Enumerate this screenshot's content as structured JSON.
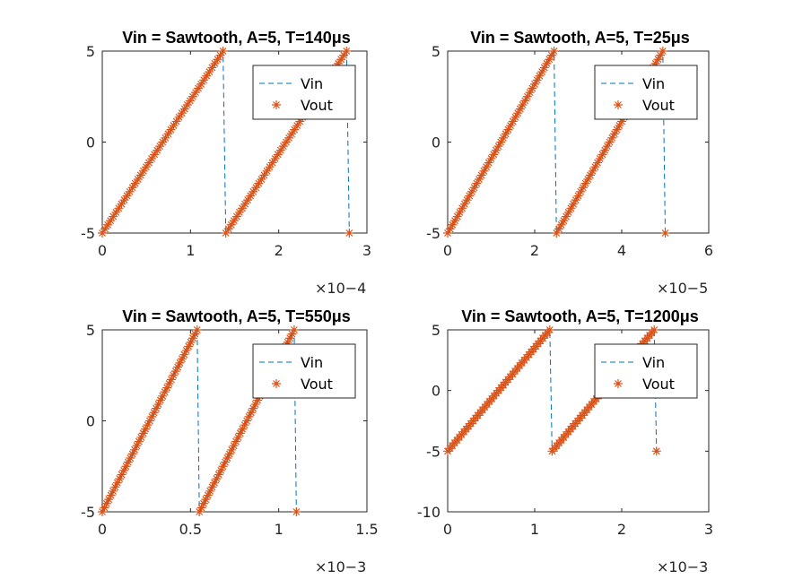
{
  "figure": {
    "background": "#ffffff",
    "vin_color": "#0072BD",
    "vout_color": "#D95319"
  },
  "chart_data": [
    {
      "type": "line",
      "title": "Vin = Sawtooth, A=5, T=140μs",
      "x_multiplier": "×10−4",
      "xlim": [
        0,
        3
      ],
      "ylim": [
        -5,
        5
      ],
      "xticks": [
        0,
        1,
        2,
        3
      ],
      "xtick_labels": [
        "0",
        "1",
        "2",
        "3"
      ],
      "yticks": [
        -5,
        0,
        5
      ],
      "ytick_labels": [
        "-5",
        "0",
        "5"
      ],
      "legend": [
        "Vin",
        "Vout"
      ],
      "legend_position": "top-right",
      "period": 1.4,
      "amplitude": 5,
      "x_max": 2.8,
      "series": [
        {
          "name": "Vin",
          "style": "dashed-line"
        },
        {
          "name": "Vout",
          "style": "asterisk-markers"
        }
      ]
    },
    {
      "type": "line",
      "title": "Vin = Sawtooth, A=5, T=25μs",
      "x_multiplier": "×10−5",
      "xlim": [
        0,
        6
      ],
      "ylim": [
        -5,
        5
      ],
      "xticks": [
        0,
        2,
        4,
        6
      ],
      "xtick_labels": [
        "0",
        "2",
        "4",
        "6"
      ],
      "yticks": [
        -5,
        0,
        5
      ],
      "ytick_labels": [
        "-5",
        "0",
        "5"
      ],
      "legend": [
        "Vin",
        "Vout"
      ],
      "legend_position": "top-right",
      "period": 2.5,
      "amplitude": 5,
      "x_max": 5.0,
      "series": [
        {
          "name": "Vin",
          "style": "dashed-line"
        },
        {
          "name": "Vout",
          "style": "asterisk-markers"
        }
      ]
    },
    {
      "type": "line",
      "title": "Vin = Sawtooth, A=5, T=550μs",
      "x_multiplier": "×10−3",
      "xlim": [
        0,
        1.5
      ],
      "ylim": [
        -5,
        5
      ],
      "xticks": [
        0,
        0.5,
        1,
        1.5
      ],
      "xtick_labels": [
        "0",
        "0.5",
        "1",
        "1.5"
      ],
      "yticks": [
        -5,
        0,
        5
      ],
      "ytick_labels": [
        "-5",
        "0",
        "5"
      ],
      "legend": [
        "Vin",
        "Vout"
      ],
      "legend_position": "top-right",
      "period": 0.55,
      "amplitude": 5,
      "x_max": 1.1,
      "series": [
        {
          "name": "Vin",
          "style": "dashed-line"
        },
        {
          "name": "Vout",
          "style": "asterisk-markers"
        }
      ]
    },
    {
      "type": "line",
      "title": "Vin = Sawtooth, A=5, T=1200μs",
      "x_multiplier": "×10−3",
      "xlim": [
        0,
        3
      ],
      "ylim": [
        -10,
        5
      ],
      "xticks": [
        0,
        1,
        2,
        3
      ],
      "xtick_labels": [
        "0",
        "1",
        "2",
        "3"
      ],
      "yticks": [
        -10,
        -5,
        0,
        5
      ],
      "ytick_labels": [
        "-10",
        "-5",
        "0",
        "5"
      ],
      "legend": [
        "Vin",
        "Vout"
      ],
      "legend_position": "top-right",
      "period": 1.2,
      "amplitude": 5,
      "x_max": 2.4,
      "series": [
        {
          "name": "Vin",
          "style": "dashed-line"
        },
        {
          "name": "Vout",
          "style": "asterisk-markers"
        }
      ]
    }
  ]
}
